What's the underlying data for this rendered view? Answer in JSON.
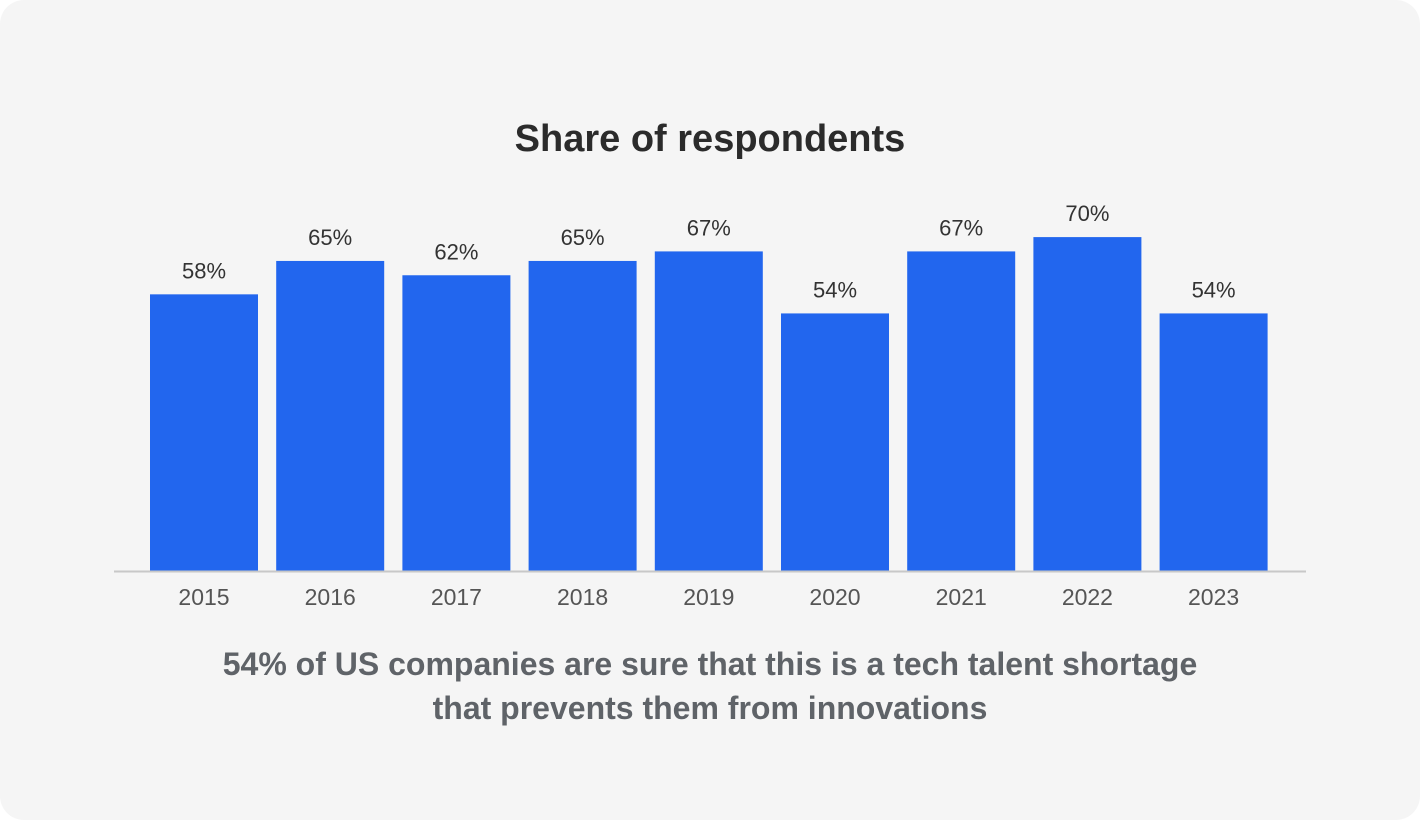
{
  "chart_data": {
    "type": "bar",
    "title": "Share of respondents",
    "categories": [
      "2015",
      "2016",
      "2017",
      "2018",
      "2019",
      "2020",
      "2021",
      "2022",
      "2023"
    ],
    "values": [
      58,
      65,
      62,
      65,
      67,
      54,
      67,
      70,
      54
    ],
    "data_labels": [
      "58%",
      "65%",
      "62%",
      "65%",
      "67%",
      "54%",
      "67%",
      "70%",
      "54%"
    ],
    "ylim": [
      0,
      70
    ],
    "grid": false,
    "bar_color": "#2266ee",
    "axis_color": "#c8c8c8",
    "caption": [
      "54% of US companies are sure that this is a tech talent shortage",
      "that prevents them from innovations"
    ]
  }
}
